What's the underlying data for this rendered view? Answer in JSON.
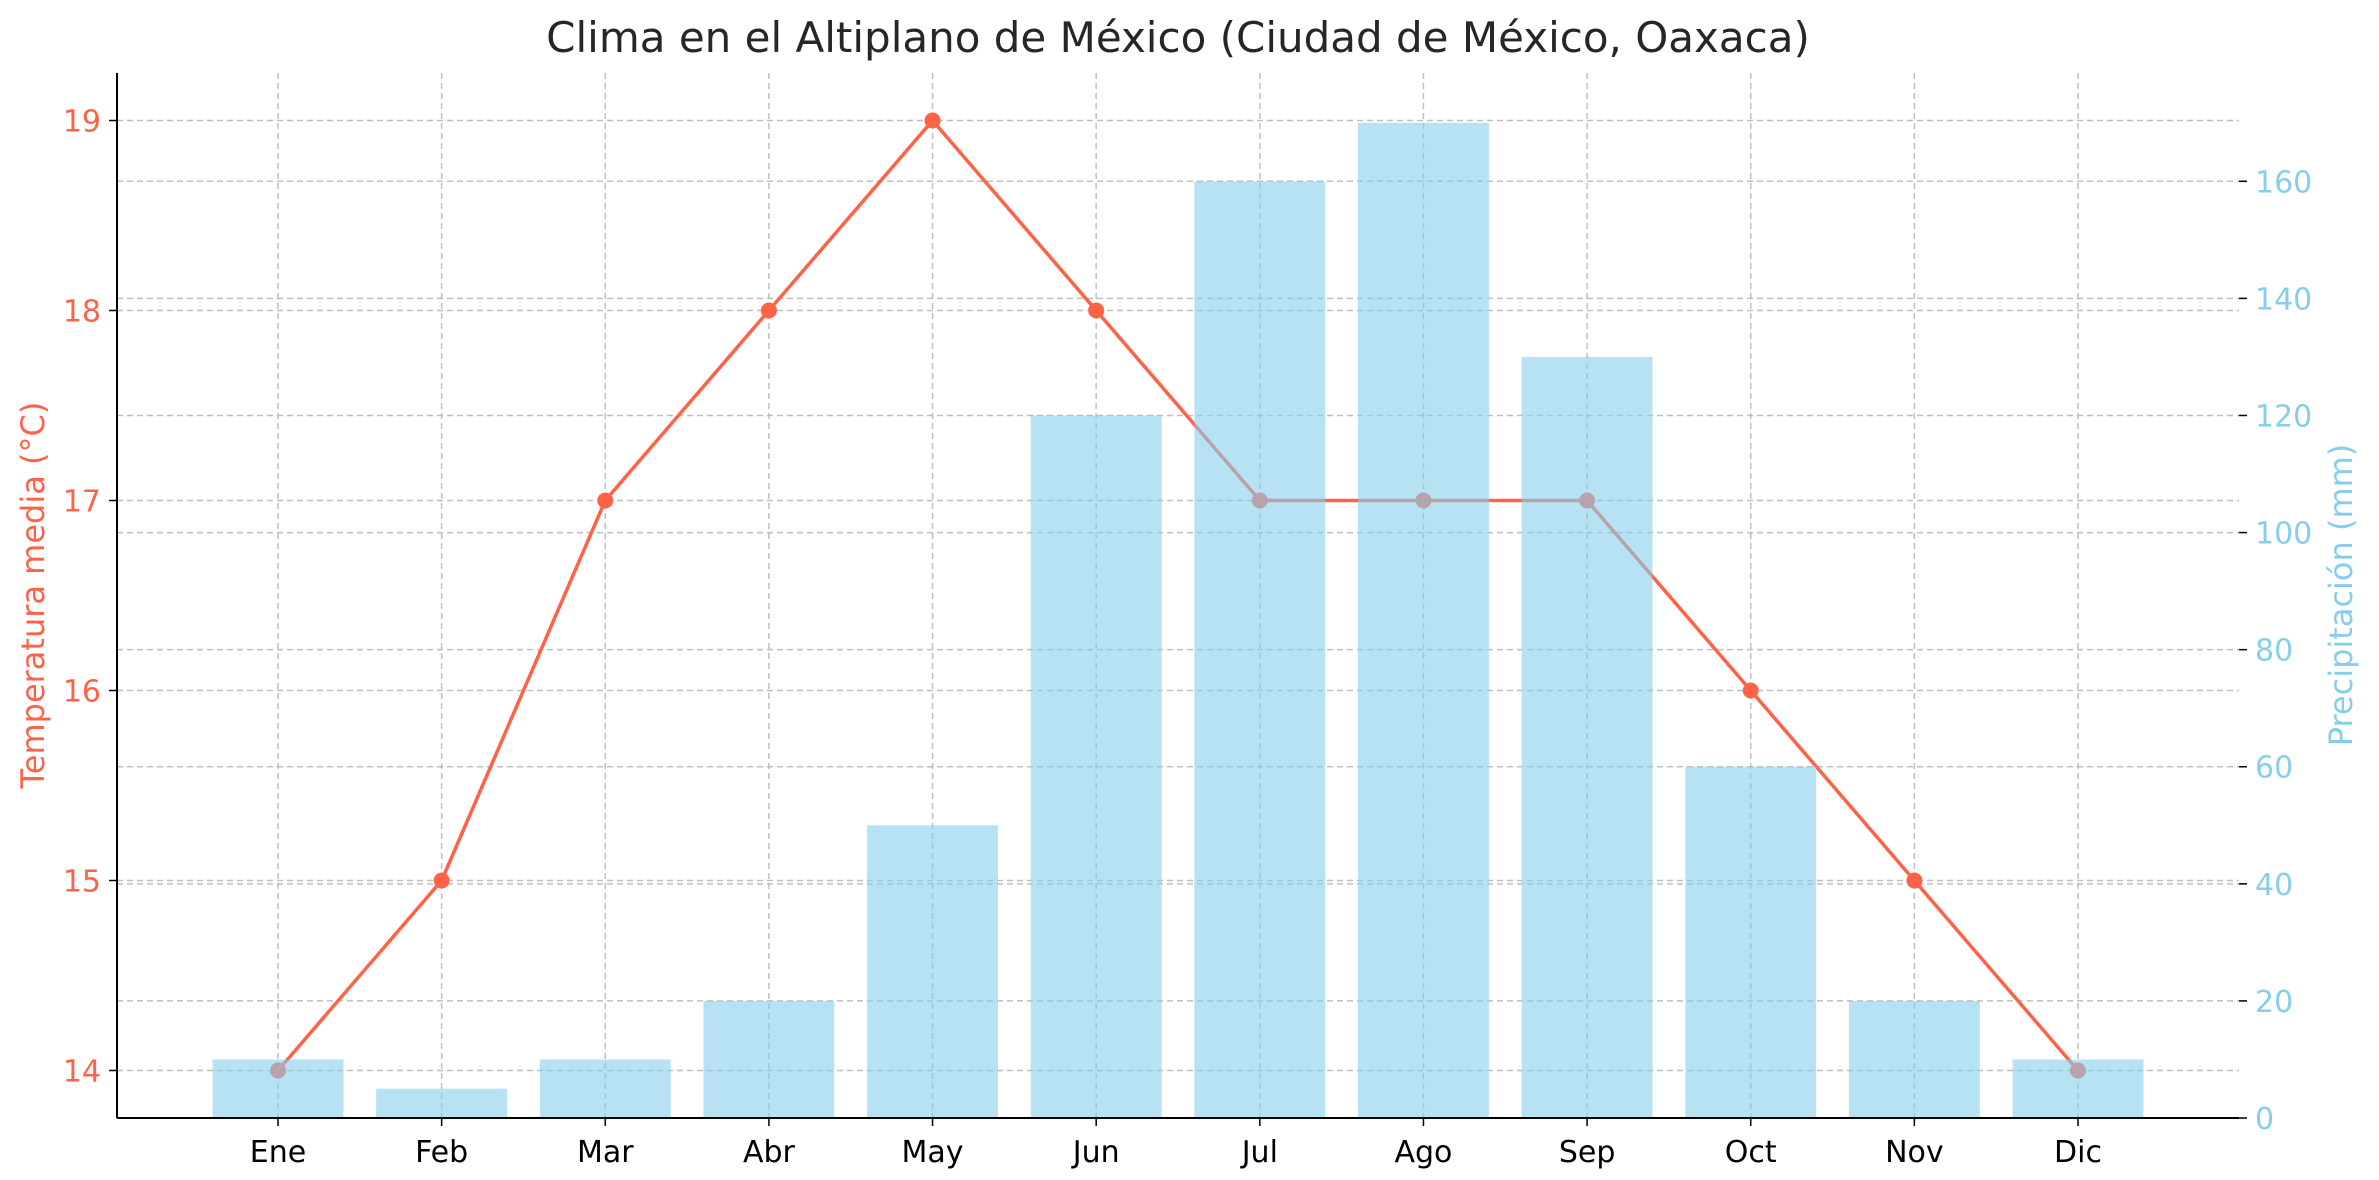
{
  "chart_data": {
    "type": "bar+line",
    "title": "Clima en el Altiplano de México (Ciudad de México, Oaxaca)",
    "categories": [
      "Ene",
      "Feb",
      "Mar",
      "Abr",
      "May",
      "Jun",
      "Jul",
      "Ago",
      "Sep",
      "Oct",
      "Nov",
      "Dic"
    ],
    "series": [
      {
        "name": "Temperatura media (°C)",
        "type": "line",
        "axis": "left",
        "color": "#FF6347",
        "values": [
          14,
          15,
          17,
          18,
          19,
          18,
          17,
          17,
          17,
          16,
          15,
          14
        ]
      },
      {
        "name": "Precipitación (mm)",
        "type": "bar",
        "axis": "right",
        "color": "#87CEEB",
        "values": [
          10,
          5,
          10,
          20,
          50,
          120,
          160,
          170,
          130,
          60,
          20,
          10
        ]
      }
    ],
    "ylabel_left": "Temperatura media (°C)",
    "ylabel_right": "Precipitación (mm)",
    "ylim_left": [
      13.75,
      19.25
    ],
    "ylim_right": [
      0,
      178.5
    ],
    "yticks_left": [
      14,
      15,
      16,
      17,
      18,
      19
    ],
    "yticks_right": [
      0,
      20,
      40,
      60,
      80,
      100,
      120,
      140,
      160
    ],
    "grid": true
  }
}
